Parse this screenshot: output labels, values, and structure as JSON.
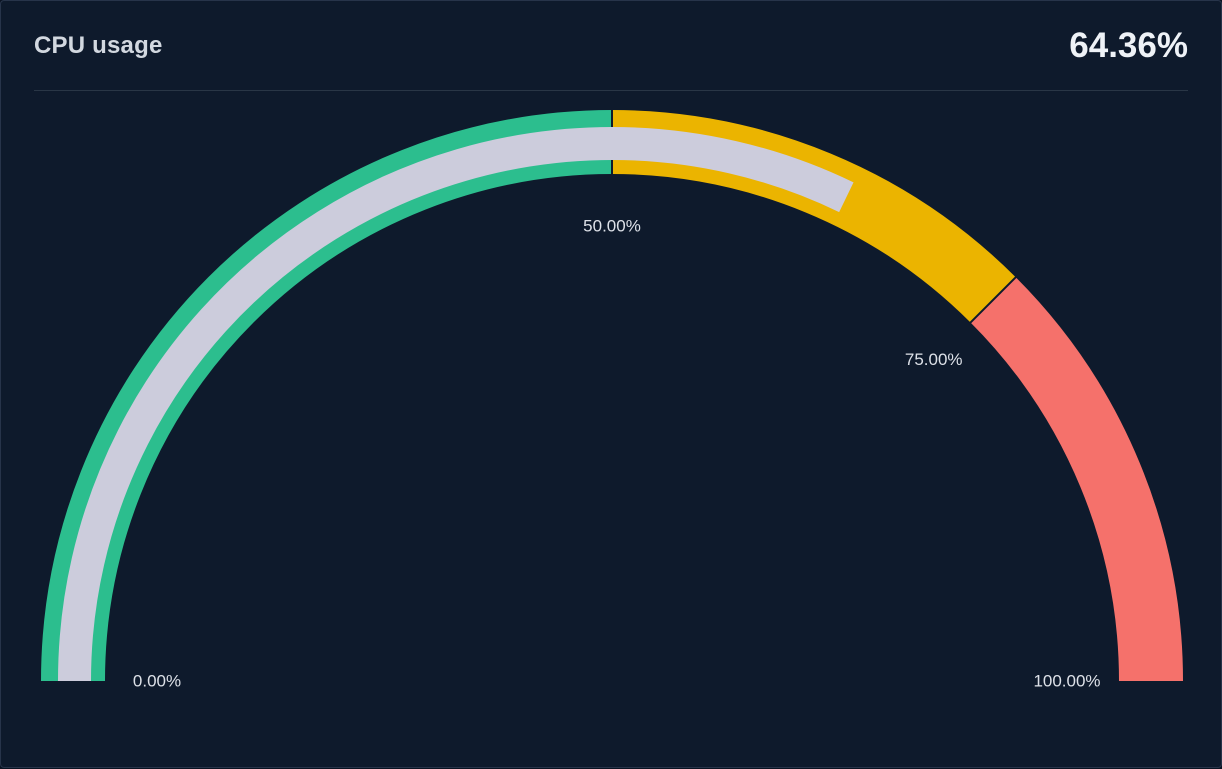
{
  "panel": {
    "title": "CPU usage",
    "value_text": "64.36%"
  },
  "chart_data": {
    "type": "gauge",
    "title": "CPU usage",
    "value": 64.36,
    "value_text": "64.36%",
    "unit": "%",
    "min": 0,
    "max": 100,
    "arc_span_degrees": 180,
    "segments": [
      {
        "from": 0,
        "to": 50,
        "color": "#2CBE8E"
      },
      {
        "from": 50,
        "to": 75,
        "color": "#EBB400"
      },
      {
        "from": 75,
        "to": 100,
        "color": "#F5716B"
      }
    ],
    "tick_labels": [
      {
        "value": 0,
        "text": "0.00%"
      },
      {
        "value": 50,
        "text": "50.00%"
      },
      {
        "value": 75,
        "text": "75.00%"
      },
      {
        "value": 100,
        "text": "100.00%"
      }
    ],
    "value_arc_color": "#CCCCDC",
    "background_color": "#0e1a2c",
    "legend": "off",
    "grid": "off"
  }
}
